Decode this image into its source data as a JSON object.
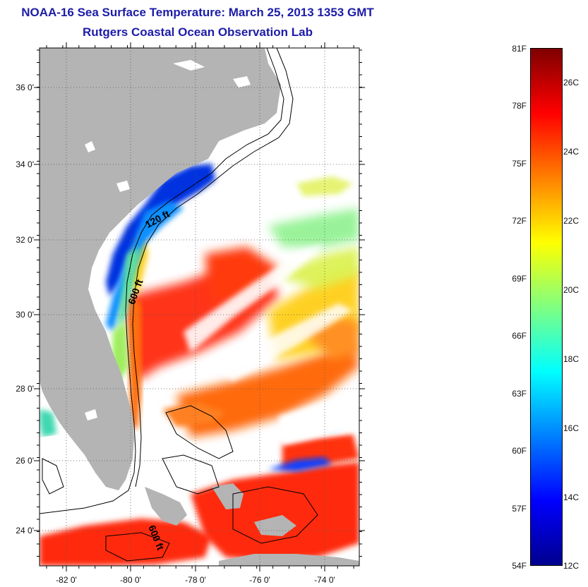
{
  "title": "NOAA-16 Sea Surface Temperature:  March 25, 2013 1353 GMT",
  "subtitle": "Rutgers Coastal Ocean Observation Lab",
  "latitude_labels": [
    "36 0'",
    "34 0'",
    "32 0'",
    "30 0'",
    "28 0'",
    "26 0'",
    "24 0'"
  ],
  "longitude_labels": [
    "-82 0'",
    "-80 0'",
    "-78 0'",
    "-76 0'",
    "-74 0'"
  ],
  "contour_labels": [
    "120 ft",
    "600 ft",
    "600 ft"
  ],
  "colorbar": {
    "fahrenheit_labels": [
      "81F",
      "78F",
      "75F",
      "72F",
      "69F",
      "66F",
      "63F",
      "60F",
      "57F",
      "54F"
    ],
    "celsius_labels": [
      "26C",
      "24C",
      "22C",
      "20C",
      "18C",
      "16C",
      "14C",
      "12C"
    ],
    "colors": [
      "#7f0000",
      "#ff0000",
      "#ff8000",
      "#ffff00",
      "#80ff80",
      "#00ffff",
      "#0080ff",
      "#0000ff",
      "#00008f"
    ]
  },
  "colors": {
    "title": "#1c1ca8",
    "land": "#b4b4b4",
    "no_data": "#ffffff"
  }
}
